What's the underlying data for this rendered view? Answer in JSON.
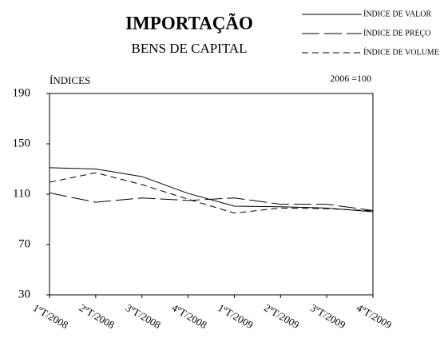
{
  "chart_data": {
    "type": "line",
    "title": "IMPORTAÇÃO",
    "subtitle": "BENS DE CAPITAL",
    "y_label": "ÍNDICES",
    "annotation": "2006 =100",
    "categories": [
      "1ºT/2008",
      "2ºT/2008",
      "3ºT/2008",
      "4ºT/2008",
      "1ºT/2009",
      "2ºT/2009",
      "3ºT/2009",
      "4ºT/2009"
    ],
    "series": [
      {
        "name": "ÍNDICE DE VALOR",
        "color": "#000000",
        "style": "solid",
        "values": [
          131,
          130,
          124,
          110.6,
          100.5,
          100,
          99,
          96
        ]
      },
      {
        "name": "ÍNDICE DE PREÇO",
        "color": "#000000",
        "style": "long-dash",
        "values": [
          111,
          103.6,
          107,
          105,
          107,
          102,
          102,
          97
        ]
      },
      {
        "name": "ÍNDICE DE VOLUME",
        "color": "#000000",
        "style": "short-dash",
        "values": [
          119.5,
          127,
          117.6,
          106,
          95,
          99,
          98.5,
          96.7
        ]
      }
    ],
    "ylim": [
      30,
      190
    ],
    "yticks": [
      30,
      70,
      110,
      150,
      190
    ],
    "legend": "top-right"
  }
}
